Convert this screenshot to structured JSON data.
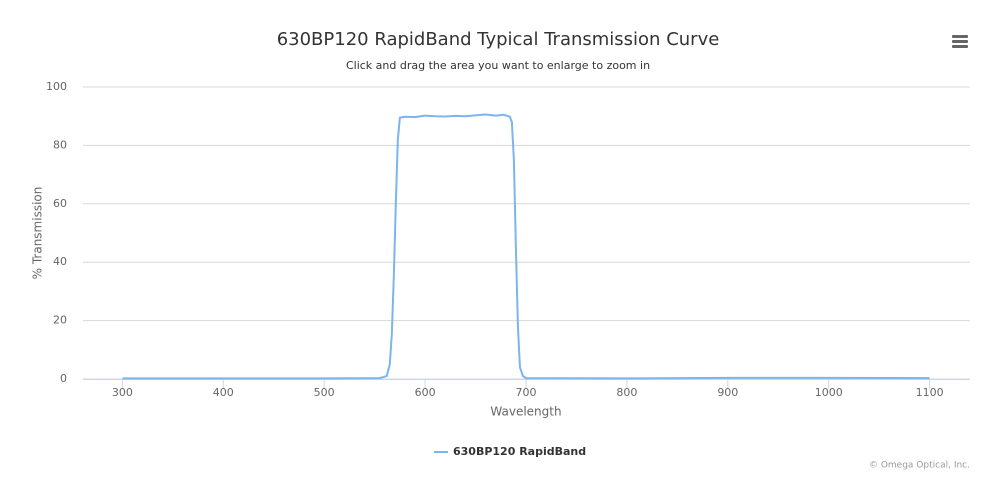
{
  "chart_data": {
    "type": "line",
    "title": "630BP120 RapidBand Typical Transmission Curve",
    "subtitle": "Click and drag the area you want to enlarge to zoom in",
    "x_label": "Wavelength",
    "y_label": "% Transmission",
    "credits": "© Omega Optical, Inc.",
    "x": [
      300,
      400,
      500,
      555,
      562,
      565,
      567,
      569,
      571,
      573,
      575,
      580,
      590,
      600,
      610,
      620,
      630,
      640,
      650,
      660,
      670,
      678,
      684,
      686,
      688,
      690,
      692,
      694,
      697,
      700,
      800,
      900,
      1000,
      1100
    ],
    "series": [
      {
        "name": "630BP120 RapidBand",
        "color": "#7cb5ec",
        "values": [
          0.2,
          0.2,
          0.2,
          0.3,
          1,
          5,
          15,
          35,
          60,
          82,
          89.5,
          89.8,
          89.7,
          90.2,
          90,
          89.9,
          90.1,
          90,
          90.3,
          90.6,
          90.2,
          90.5,
          89.8,
          88,
          75,
          45,
          18,
          4,
          1,
          0.3,
          0.2,
          0.4,
          0.4,
          0.3
        ]
      }
    ],
    "xlim": [
      261,
      1140
    ],
    "xticks": [
      300,
      400,
      500,
      600,
      700,
      800,
      900,
      1000,
      1100
    ],
    "ylim": [
      0,
      100
    ],
    "yticks": [
      0,
      20,
      40,
      60,
      80,
      100
    ],
    "grid": true,
    "legend": "bottom"
  }
}
